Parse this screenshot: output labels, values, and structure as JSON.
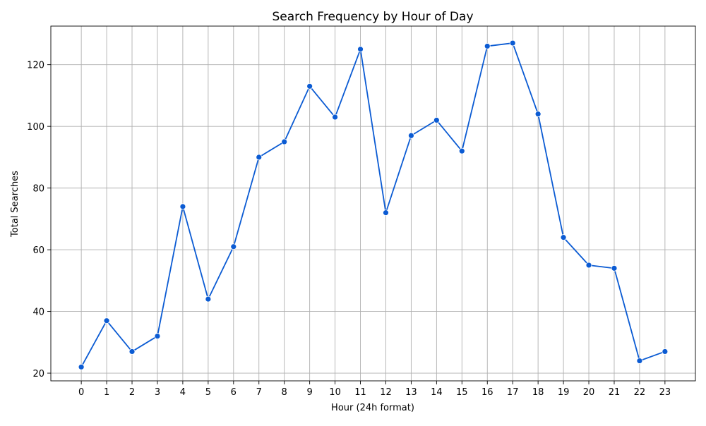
{
  "chart_data": {
    "type": "line",
    "title": "Search Frequency by Hour of Day",
    "xlabel": "Hour (24h format)",
    "ylabel": "Total Searches",
    "x": [
      0,
      1,
      2,
      3,
      4,
      5,
      6,
      7,
      8,
      9,
      10,
      11,
      12,
      13,
      14,
      15,
      16,
      17,
      18,
      19,
      20,
      21,
      22,
      23
    ],
    "x_tick_labels": [
      "0",
      "1",
      "2",
      "3",
      "4",
      "5",
      "6",
      "7",
      "8",
      "9",
      "10",
      "11",
      "12",
      "13",
      "14",
      "15",
      "16",
      "17",
      "18",
      "19",
      "20",
      "21",
      "22",
      "23"
    ],
    "series": [
      {
        "values": [
          22,
          37,
          27,
          32,
          74,
          44,
          61,
          90,
          95,
          113,
          103,
          125,
          72,
          97,
          102,
          92,
          126,
          127,
          104,
          64,
          55,
          54,
          24,
          27
        ],
        "color": "#0b5bd3",
        "marker": "circle"
      }
    ],
    "y_ticks": [
      20,
      40,
      60,
      80,
      100,
      120
    ],
    "y_tick_labels": [
      "20",
      "40",
      "60",
      "80",
      "100",
      "120"
    ],
    "xlim": [
      -1.2,
      24.2
    ],
    "ylim": [
      17.5,
      132.5
    ],
    "grid": true,
    "legend": "none"
  }
}
